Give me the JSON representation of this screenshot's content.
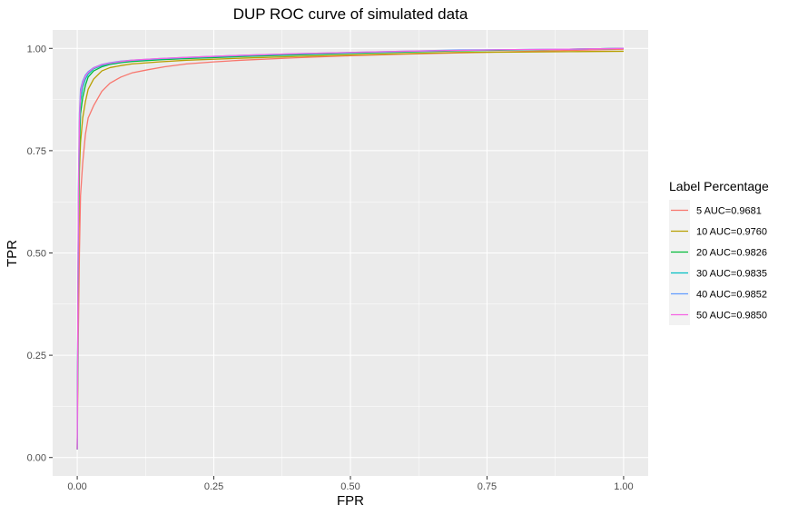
{
  "chart_data": {
    "type": "line",
    "title": "DUP ROC curve of simulated data",
    "xlabel": "FPR",
    "ylabel": "TPR",
    "xlim": [
      -0.045,
      1.045
    ],
    "ylim": [
      -0.045,
      1.045
    ],
    "x_ticks": [
      "0.00",
      "0.25",
      "0.50",
      "0.75",
      "1.00"
    ],
    "y_ticks": [
      "0.00",
      "0.25",
      "0.50",
      "0.75",
      "1.00"
    ],
    "grid": true,
    "legend": {
      "title": "Label Percentage",
      "position": "right"
    },
    "series": [
      {
        "name": "5 AUC=0.9681",
        "color": "#F8766D",
        "x": [
          0,
          0.002,
          0.004,
          0.006,
          0.01,
          0.015,
          0.02,
          0.03,
          0.045,
          0.06,
          0.08,
          0.1,
          0.13,
          0.16,
          0.2,
          0.25,
          0.3,
          0.4,
          0.5,
          0.6,
          0.7,
          0.8,
          0.9,
          1.0
        ],
        "y": [
          0.02,
          0.3,
          0.5,
          0.64,
          0.72,
          0.79,
          0.83,
          0.86,
          0.895,
          0.915,
          0.93,
          0.94,
          0.948,
          0.955,
          0.962,
          0.967,
          0.971,
          0.977,
          0.982,
          0.986,
          0.989,
          0.992,
          0.995,
          0.998
        ]
      },
      {
        "name": "10 AUC=0.9760",
        "color": "#B79F00",
        "x": [
          0,
          0.002,
          0.004,
          0.006,
          0.01,
          0.015,
          0.02,
          0.03,
          0.045,
          0.06,
          0.08,
          0.1,
          0.15,
          0.2,
          0.3,
          0.4,
          0.5,
          0.6,
          0.7,
          0.8,
          0.9,
          1.0
        ],
        "y": [
          0.02,
          0.5,
          0.7,
          0.77,
          0.83,
          0.87,
          0.9,
          0.925,
          0.945,
          0.953,
          0.958,
          0.962,
          0.967,
          0.971,
          0.976,
          0.98,
          0.984,
          0.987,
          0.99,
          0.991,
          0.992,
          0.993
        ]
      },
      {
        "name": "20 AUC=0.9826",
        "color": "#00BA38",
        "x": [
          0,
          0.002,
          0.004,
          0.006,
          0.01,
          0.015,
          0.02,
          0.03,
          0.045,
          0.06,
          0.08,
          0.1,
          0.15,
          0.2,
          0.3,
          0.4,
          0.5,
          0.6,
          0.7,
          0.8,
          0.9,
          1.0
        ],
        "y": [
          0.02,
          0.55,
          0.76,
          0.84,
          0.88,
          0.91,
          0.93,
          0.945,
          0.955,
          0.961,
          0.965,
          0.968,
          0.972,
          0.975,
          0.98,
          0.984,
          0.988,
          0.991,
          0.994,
          0.996,
          0.998,
          1.0
        ]
      },
      {
        "name": "30 AUC=0.9835",
        "color": "#00BFC4",
        "x": [
          0,
          0.002,
          0.004,
          0.006,
          0.01,
          0.015,
          0.02,
          0.03,
          0.045,
          0.06,
          0.08,
          0.1,
          0.15,
          0.2,
          0.3,
          0.4,
          0.5,
          0.6,
          0.7,
          0.8,
          0.9,
          1.0
        ],
        "y": [
          0.02,
          0.6,
          0.8,
          0.87,
          0.905,
          0.925,
          0.937,
          0.95,
          0.958,
          0.963,
          0.967,
          0.97,
          0.974,
          0.977,
          0.982,
          0.986,
          0.989,
          0.992,
          0.995,
          0.997,
          0.998,
          1.0
        ]
      },
      {
        "name": "40 AUC=0.9852",
        "color": "#619CFF",
        "x": [
          0,
          0.002,
          0.004,
          0.006,
          0.01,
          0.015,
          0.02,
          0.03,
          0.045,
          0.06,
          0.08,
          0.1,
          0.15,
          0.2,
          0.3,
          0.4,
          0.5,
          0.6,
          0.7,
          0.8,
          0.9,
          1.0
        ],
        "y": [
          0.02,
          0.65,
          0.84,
          0.9,
          0.92,
          0.935,
          0.943,
          0.953,
          0.961,
          0.965,
          0.969,
          0.971,
          0.975,
          0.978,
          0.983,
          0.987,
          0.99,
          0.993,
          0.996,
          0.997,
          0.998,
          1.0
        ]
      },
      {
        "name": "50 AUC=0.9850",
        "color": "#F564E3",
        "x": [
          0,
          0.002,
          0.004,
          0.006,
          0.01,
          0.015,
          0.02,
          0.03,
          0.045,
          0.06,
          0.08,
          0.1,
          0.15,
          0.2,
          0.3,
          0.4,
          0.5,
          0.6,
          0.7,
          0.8,
          0.9,
          1.0
        ],
        "y": [
          0.02,
          0.62,
          0.82,
          0.89,
          0.915,
          0.932,
          0.941,
          0.952,
          0.96,
          0.964,
          0.968,
          0.971,
          0.975,
          0.978,
          0.983,
          0.987,
          0.99,
          0.993,
          0.995,
          0.997,
          0.998,
          1.0
        ]
      }
    ]
  },
  "colors": {
    "panel_background": "#EBEBEB",
    "grid_major": "#FFFFFF",
    "legend_key_background": "#F2F2F2"
  }
}
